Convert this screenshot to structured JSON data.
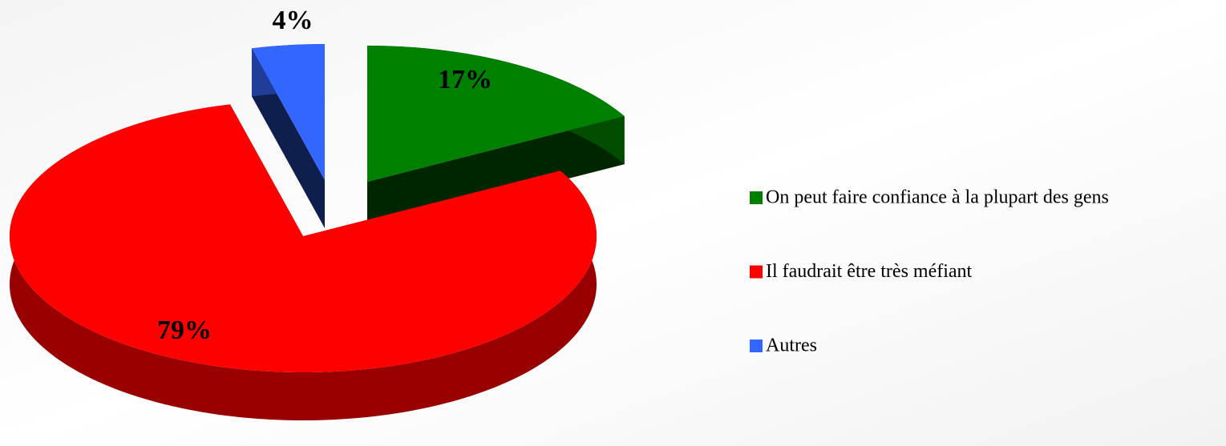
{
  "chart_data": {
    "type": "pie",
    "categories": [
      "On peut faire confiance à la plupart des gens",
      "Il faudrait être très méfiant",
      "Autres"
    ],
    "values": [
      17,
      79,
      4
    ],
    "value_labels": [
      "17%",
      "79%",
      "4%"
    ],
    "colors": [
      "#008000",
      "#ff0000",
      "#3366ff"
    ],
    "legend": "right"
  }
}
